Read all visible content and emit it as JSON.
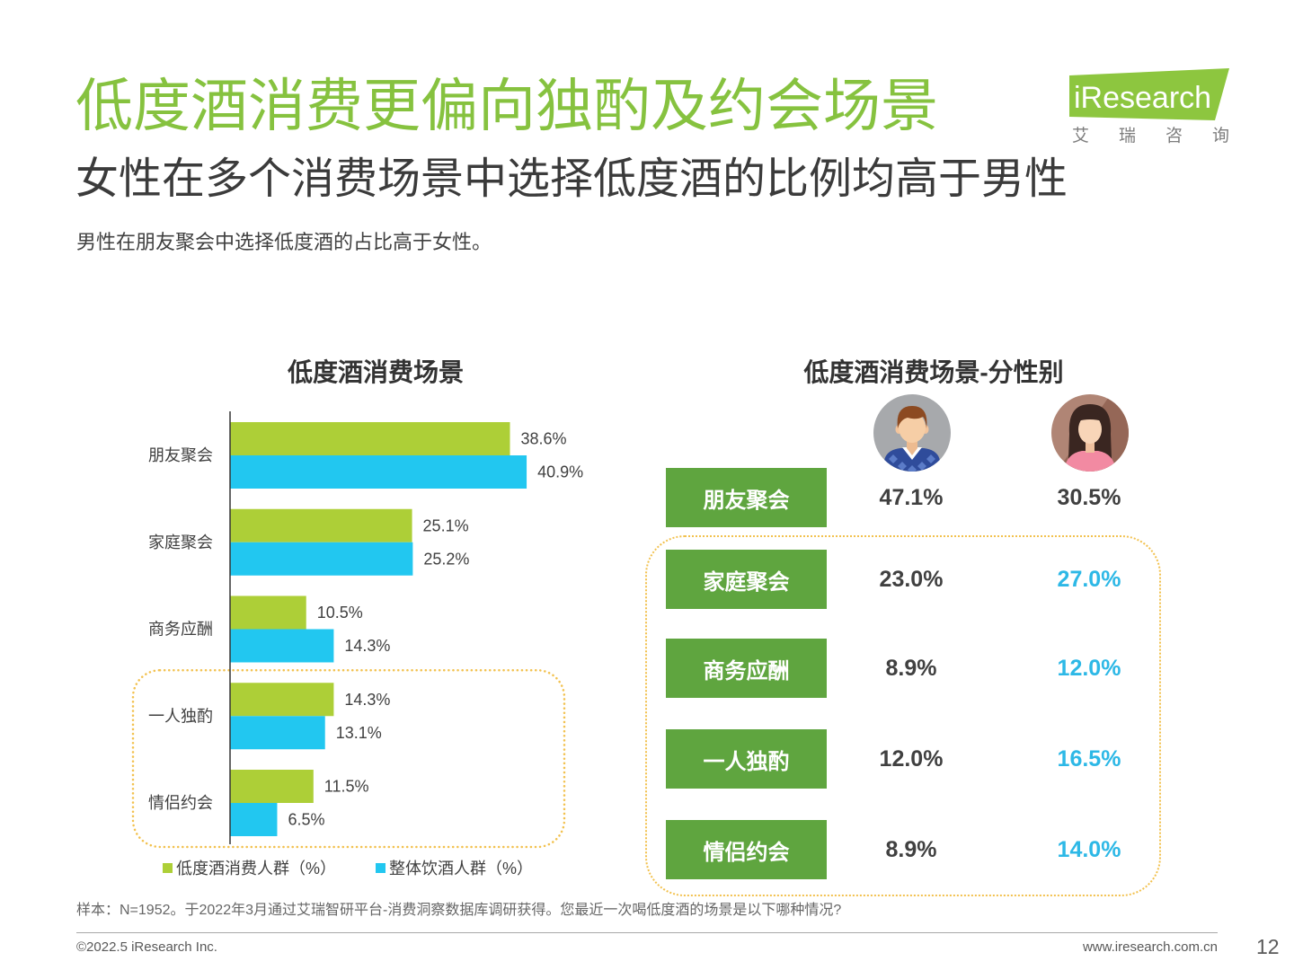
{
  "header": {
    "title": "低度酒消费更偏向独酌及约会场景",
    "subtitle": "女性在多个消费场景中选择低度酒的比例均高于男性",
    "summary": "男性在朋友聚会中选择低度酒的占比高于女性。"
  },
  "logo": {
    "brand": "iResearch",
    "tagline": "艾瑞咨询"
  },
  "theme": {
    "title_color": "#86C23F",
    "category_box_color": "#5FA53F",
    "highlight_text_color": "#2DB8E6",
    "highlight_outline_color": "#F2C14E",
    "logo_color": "#8DC63F"
  },
  "chart_data": [
    {
      "type": "bar",
      "orientation": "horizontal",
      "title": "低度酒消费场景",
      "categories": [
        "朋友聚会",
        "家庭聚会",
        "商务应酬",
        "一人独酌",
        "情侣约会"
      ],
      "series": [
        {
          "name": "低度酒消费人群（%）",
          "values": [
            38.6,
            25.1,
            10.5,
            14.3,
            11.5
          ],
          "color": "#ADCF37"
        },
        {
          "name": "整体饮酒人群（%）",
          "values": [
            40.9,
            25.2,
            14.3,
            13.1,
            6.5
          ],
          "color": "#22C7F0"
        }
      ],
      "unit": "%",
      "legend": "bottom",
      "highlighted_categories": [
        3,
        4
      ]
    },
    {
      "type": "table",
      "title": "低度酒消费场景-分性别",
      "columns": [
        {
          "icon": "male-avatar-icon"
        },
        {
          "icon": "female-avatar-icon"
        }
      ],
      "rows": [
        {
          "label": "朋友聚会",
          "male": "47.1%",
          "female": "30.5%"
        },
        {
          "label": "家庭聚会",
          "male": "23.0%",
          "female": "27.0%"
        },
        {
          "label": "商务应酬",
          "male": "8.9%",
          "female": "12.0%"
        },
        {
          "label": "一人独酌",
          "male": "12.0%",
          "female": "16.5%"
        },
        {
          "label": "情侣约会",
          "male": "8.9%",
          "female": "14.0%"
        }
      ],
      "highlighted_rows": [
        1,
        2,
        3,
        4
      ]
    }
  ],
  "footer": {
    "note": "样本：N=1952。于2022年3月通过艾瑞智研平台-消费洞察数据库调研获得。您最近一次喝低度酒的场景是以下哪种情况?",
    "copyright": "©2022.5 iResearch Inc.",
    "website": "www.iresearch.com.cn",
    "page_number": "12"
  }
}
